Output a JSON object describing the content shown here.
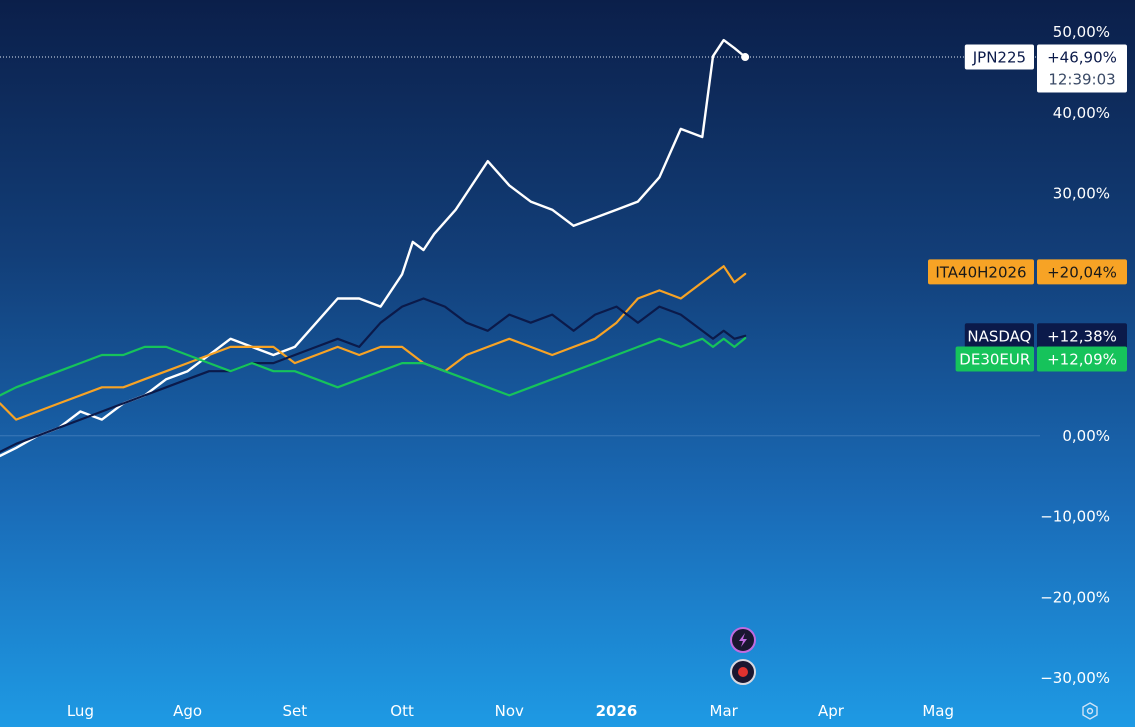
{
  "chart_data": {
    "type": "line",
    "y_unit": "%",
    "ylim": [
      -30,
      50
    ],
    "yticks": [
      "50,00%",
      "40,00%",
      "30,00%",
      "0,00%",
      "−10,00%",
      "−20,00%",
      "−30,00%"
    ],
    "ytick_values": [
      50,
      40,
      30,
      0,
      -10,
      -20,
      -30
    ],
    "xticks": [
      "Lug",
      "Ago",
      "Set",
      "Ott",
      "Nov",
      "2026",
      "Mar",
      "Apr",
      "Mag"
    ],
    "xtick_positions": [
      0,
      1,
      2,
      3,
      4,
      5,
      6,
      7,
      8
    ],
    "xlim": [
      -0.75,
      8.95
    ],
    "grid": false,
    "last_time": "12:39:03",
    "series": [
      {
        "name": "JPN225",
        "color": "#ffffff",
        "last_label": "+46,90%",
        "x": [
          -0.75,
          -0.6,
          -0.4,
          -0.2,
          0,
          0.2,
          0.4,
          0.6,
          0.8,
          1,
          1.2,
          1.4,
          1.6,
          1.8,
          2,
          2.2,
          2.4,
          2.6,
          2.8,
          3,
          3.1,
          3.2,
          3.3,
          3.5,
          3.6,
          3.8,
          4,
          4.2,
          4.4,
          4.6,
          4.8,
          5,
          5.2,
          5.4,
          5.6,
          5.8,
          5.9,
          6.0,
          6.1,
          6.2
        ],
        "y": [
          -2.5,
          -1.5,
          0,
          1,
          3,
          2,
          4,
          5,
          7,
          8,
          10,
          12,
          11,
          10,
          11,
          14,
          17,
          17,
          16,
          20,
          24,
          23,
          25,
          28,
          30,
          34,
          31,
          29,
          28,
          26,
          27,
          28,
          29,
          32,
          38,
          37,
          47,
          49,
          48,
          46.9
        ]
      },
      {
        "name": "ITA40H2026",
        "color": "#f7a325",
        "last_label": "+20,04%",
        "x": [
          -0.75,
          -0.6,
          -0.4,
          -0.2,
          0,
          0.2,
          0.4,
          0.6,
          0.8,
          1,
          1.2,
          1.4,
          1.6,
          1.8,
          2,
          2.2,
          2.4,
          2.6,
          2.8,
          3,
          3.2,
          3.4,
          3.6,
          3.8,
          4,
          4.2,
          4.4,
          4.6,
          4.8,
          5,
          5.2,
          5.4,
          5.6,
          5.8,
          5.9,
          6.0,
          6.1,
          6.2
        ],
        "y": [
          4,
          2,
          3,
          4,
          5,
          6,
          6,
          7,
          8,
          9,
          10,
          11,
          11,
          11,
          9,
          10,
          11,
          10,
          11,
          11,
          9,
          8,
          10,
          11,
          12,
          11,
          10,
          11,
          12,
          14,
          17,
          18,
          17,
          19,
          20,
          21,
          19,
          20.04
        ]
      },
      {
        "name": "NASDAQ",
        "color": "#0b1a4a",
        "last_label": "+12,38%",
        "x": [
          -0.75,
          -0.6,
          -0.4,
          -0.2,
          0,
          0.2,
          0.4,
          0.6,
          0.8,
          1,
          1.2,
          1.4,
          1.6,
          1.8,
          2,
          2.2,
          2.4,
          2.6,
          2.8,
          3,
          3.2,
          3.4,
          3.6,
          3.8,
          4,
          4.2,
          4.4,
          4.6,
          4.8,
          5,
          5.2,
          5.4,
          5.6,
          5.8,
          5.9,
          6.0,
          6.1,
          6.2
        ],
        "y": [
          -2,
          -1,
          0,
          1,
          2,
          3,
          4,
          5,
          6,
          7,
          8,
          8,
          9,
          9,
          10,
          11,
          12,
          11,
          14,
          16,
          17,
          16,
          14,
          13,
          15,
          14,
          15,
          13,
          15,
          16,
          14,
          16,
          15,
          13,
          12,
          13,
          12,
          12.38
        ]
      },
      {
        "name": "DE30EUR",
        "color": "#16c35b",
        "last_label": "+12,09%",
        "x": [
          -0.75,
          -0.6,
          -0.4,
          -0.2,
          0,
          0.2,
          0.4,
          0.6,
          0.8,
          1,
          1.2,
          1.4,
          1.6,
          1.8,
          2,
          2.2,
          2.4,
          2.6,
          2.8,
          3,
          3.2,
          3.4,
          3.6,
          3.8,
          4,
          4.2,
          4.4,
          4.6,
          4.8,
          5,
          5.2,
          5.4,
          5.6,
          5.8,
          5.9,
          6.0,
          6.1,
          6.2
        ],
        "y": [
          5,
          6,
          7,
          8,
          9,
          10,
          10,
          11,
          11,
          10,
          9,
          8,
          9,
          8,
          8,
          7,
          6,
          7,
          8,
          9,
          9,
          8,
          7,
          6,
          5,
          6,
          7,
          8,
          9,
          10,
          11,
          12,
          11,
          12,
          11,
          12,
          11,
          12.09
        ]
      }
    ]
  },
  "icons": {
    "bolt": "bolt-icon",
    "record": "record-icon",
    "settings": "settings-hex-icon"
  }
}
